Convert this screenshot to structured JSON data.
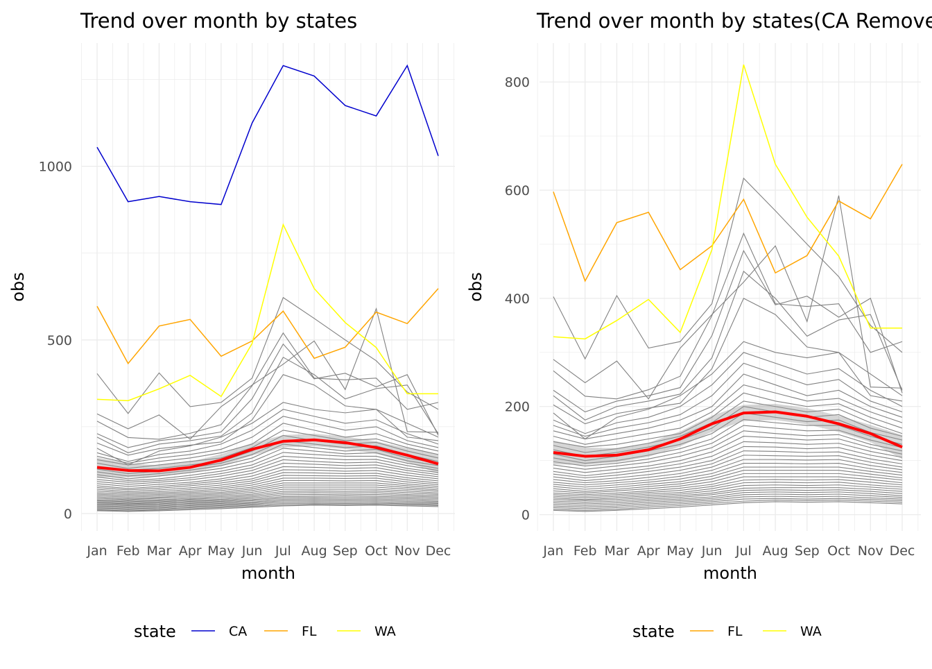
{
  "chart_data": [
    {
      "type": "line",
      "title": "Trend over month by states",
      "xlabel": "month",
      "ylabel": "obs",
      "categories": [
        "Jan",
        "Feb",
        "Mar",
        "Apr",
        "May",
        "Jun",
        "Jul",
        "Aug",
        "Sep",
        "Oct",
        "Nov",
        "Dec"
      ],
      "ylim": [
        -50,
        1355
      ],
      "yticks": [
        0,
        500,
        1000
      ],
      "grid": true,
      "legend": {
        "title": "state",
        "position": "bottom",
        "entries": [
          {
            "label": "CA",
            "color": "#0000cd"
          },
          {
            "label": "FL",
            "color": "#ffa500"
          },
          {
            "label": "WA",
            "color": "#ffff00"
          }
        ]
      },
      "series": [
        {
          "name": "CA",
          "color": "#0000cd",
          "values": [
            1055,
            898,
            913,
            898,
            890,
            1125,
            1290,
            1260,
            1175,
            1145,
            1290,
            1030
          ]
        },
        {
          "name": "FL",
          "color": "#ffa500",
          "values": [
            597,
            432,
            540,
            559,
            453,
            497,
            583,
            447,
            479,
            580,
            547,
            648
          ]
        },
        {
          "name": "WA",
          "color": "#ffff00",
          "values": [
            329,
            325,
            359,
            398,
            337,
            490,
            832,
            648,
            550,
            478,
            345,
            345
          ]
        }
      ],
      "other_states_color": "#808080",
      "other_states": [
        [
          403,
          288,
          405,
          308,
          320,
          390,
          622,
          562,
          500,
          440,
          350,
          300
        ],
        [
          287,
          244,
          284,
          214,
          308,
          370,
          430,
          497,
          357,
          590,
          236,
          234
        ],
        [
          266,
          219,
          214,
          231,
          256,
          368,
          520,
          390,
          385,
          390,
          300,
          320
        ],
        [
          230,
          190,
          210,
          220,
          235,
          331,
          488,
          388,
          404,
          365,
          400,
          225
        ],
        [
          220,
          175,
          200,
          210,
          223,
          290,
          450,
          400,
          330,
          360,
          370,
          230
        ],
        [
          203,
          168,
          187,
          197,
          206,
          270,
          400,
          370,
          310,
          300,
          220,
          210
        ],
        [
          188,
          140,
          180,
          195,
          220,
          260,
          320,
          300,
          290,
          300,
          260,
          220
        ],
        [
          175,
          150,
          170,
          180,
          200,
          240,
          300,
          280,
          260,
          270,
          230,
          200
        ],
        [
          165,
          145,
          160,
          170,
          185,
          220,
          280,
          260,
          240,
          250,
          210,
          190
        ],
        [
          155,
          140,
          150,
          160,
          175,
          200,
          260,
          240,
          220,
          230,
          200,
          180
        ],
        [
          145,
          130,
          140,
          150,
          160,
          190,
          240,
          225,
          210,
          215,
          190,
          170
        ],
        [
          135,
          125,
          130,
          140,
          150,
          180,
          225,
          210,
          200,
          205,
          180,
          160
        ],
        [
          128,
          115,
          122,
          132,
          145,
          170,
          210,
          200,
          190,
          195,
          170,
          150
        ],
        [
          120,
          108,
          115,
          125,
          138,
          160,
          200,
          190,
          180,
          185,
          160,
          145
        ],
        [
          112,
          100,
          108,
          118,
          130,
          150,
          188,
          180,
          172,
          175,
          152,
          138
        ],
        [
          105,
          95,
          100,
          110,
          122,
          140,
          176,
          170,
          165,
          165,
          145,
          130
        ],
        [
          98,
          90,
          95,
          103,
          115,
          132,
          165,
          160,
          155,
          156,
          138,
          124
        ],
        [
          92,
          84,
          90,
          97,
          108,
          124,
          155,
          150,
          146,
          148,
          130,
          118
        ],
        [
          86,
          78,
          84,
          90,
          100,
          116,
          145,
          142,
          138,
          140,
          124,
          112
        ],
        [
          80,
          72,
          78,
          85,
          94,
          108,
          135,
          133,
          130,
          132,
          117,
          106
        ],
        [
          75,
          68,
          73,
          80,
          88,
          100,
          126,
          125,
          122,
          124,
          110,
          100
        ],
        [
          70,
          63,
          68,
          74,
          82,
          94,
          118,
          117,
          115,
          116,
          103,
          94
        ],
        [
          65,
          59,
          63,
          69,
          76,
          88,
          110,
          109,
          108,
          109,
          97,
          88
        ],
        [
          60,
          55,
          59,
          64,
          71,
          82,
          102,
          102,
          101,
          102,
          91,
          83
        ],
        [
          56,
          51,
          55,
          60,
          66,
          76,
          95,
          95,
          94,
          95,
          85,
          78
        ],
        [
          52,
          47,
          51,
          56,
          61,
          71,
          88,
          88,
          88,
          88,
          80,
          73
        ],
        [
          48,
          43,
          47,
          52,
          57,
          66,
          82,
          82,
          82,
          82,
          75,
          68
        ],
        [
          44,
          40,
          44,
          48,
          53,
          61,
          76,
          76,
          76,
          76,
          70,
          64
        ],
        [
          40,
          37,
          40,
          44,
          49,
          56,
          70,
          70,
          70,
          70,
          65,
          59
        ],
        [
          37,
          34,
          37,
          41,
          45,
          52,
          64,
          65,
          64,
          65,
          60,
          55
        ],
        [
          34,
          31,
          34,
          38,
          41,
          48,
          59,
          60,
          59,
          60,
          55,
          51
        ],
        [
          31,
          28,
          31,
          35,
          38,
          44,
          54,
          55,
          54,
          55,
          51,
          47
        ],
        [
          28,
          26,
          28,
          32,
          35,
          40,
          49,
          50,
          50,
          50,
          47,
          43
        ],
        [
          25,
          23,
          25,
          29,
          32,
          37,
          45,
          46,
          45,
          46,
          43,
          39
        ],
        [
          22,
          20,
          22,
          26,
          29,
          33,
          41,
          42,
          41,
          42,
          39,
          35
        ],
        [
          19,
          17,
          19,
          23,
          26,
          30,
          37,
          38,
          37,
          38,
          35,
          32
        ],
        [
          16,
          14,
          16,
          20,
          23,
          27,
          33,
          34,
          33,
          34,
          31,
          29
        ],
        [
          13,
          11,
          13,
          17,
          20,
          24,
          29,
          30,
          29,
          30,
          28,
          26
        ],
        [
          10,
          8,
          10,
          14,
          17,
          21,
          25,
          27,
          26,
          27,
          25,
          23
        ],
        [
          8,
          6,
          8,
          11,
          14,
          18,
          22,
          24,
          23,
          24,
          22,
          20
        ]
      ],
      "smooth": {
        "color": "#ff0000",
        "values": [
          133,
          124,
          123,
          133,
          154,
          185,
          208,
          212,
          204,
          190,
          168,
          143
        ],
        "band_halfwidth": [
          28,
          20,
          16,
          16,
          17,
          18,
          18,
          18,
          18,
          18,
          20,
          28
        ]
      }
    },
    {
      "type": "line",
      "title": "Trend over month by states(CA Removed)",
      "xlabel": "month",
      "ylabel": "obs",
      "categories": [
        "Jan",
        "Feb",
        "Mar",
        "Apr",
        "May",
        "Jun",
        "Jul",
        "Aug",
        "Sep",
        "Oct",
        "Nov",
        "Dec"
      ],
      "ylim": [
        -30,
        872
      ],
      "yticks": [
        0,
        200,
        400,
        600,
        800
      ],
      "grid": true,
      "legend": {
        "title": "state",
        "position": "bottom",
        "entries": [
          {
            "label": "FL",
            "color": "#ffa500"
          },
          {
            "label": "WA",
            "color": "#ffff00"
          }
        ]
      },
      "series": [
        {
          "name": "FL",
          "color": "#ffa500",
          "values": [
            597,
            432,
            540,
            559,
            453,
            497,
            583,
            447,
            479,
            580,
            547,
            648
          ]
        },
        {
          "name": "WA",
          "color": "#ffff00",
          "values": [
            329,
            325,
            359,
            398,
            337,
            490,
            832,
            648,
            550,
            478,
            345,
            345
          ]
        }
      ],
      "other_states_color": "#808080",
      "other_states": [
        [
          403,
          288,
          405,
          308,
          320,
          390,
          622,
          562,
          500,
          440,
          350,
          300
        ],
        [
          287,
          244,
          284,
          214,
          308,
          370,
          430,
          497,
          357,
          590,
          236,
          234
        ],
        [
          266,
          219,
          214,
          231,
          256,
          368,
          520,
          390,
          385,
          390,
          300,
          320
        ],
        [
          230,
          190,
          210,
          220,
          235,
          331,
          488,
          388,
          404,
          365,
          400,
          225
        ],
        [
          220,
          175,
          200,
          210,
          223,
          290,
          450,
          400,
          330,
          360,
          370,
          230
        ],
        [
          203,
          168,
          187,
          197,
          206,
          270,
          400,
          370,
          310,
          300,
          220,
          210
        ],
        [
          188,
          140,
          180,
          195,
          220,
          260,
          320,
          300,
          290,
          300,
          260,
          220
        ],
        [
          175,
          150,
          170,
          180,
          200,
          240,
          300,
          280,
          260,
          270,
          230,
          200
        ],
        [
          165,
          145,
          160,
          170,
          185,
          220,
          280,
          260,
          240,
          250,
          210,
          190
        ],
        [
          155,
          140,
          150,
          160,
          175,
          200,
          260,
          240,
          220,
          230,
          200,
          180
        ],
        [
          145,
          130,
          140,
          150,
          160,
          190,
          240,
          225,
          210,
          215,
          190,
          170
        ],
        [
          135,
          125,
          130,
          140,
          150,
          180,
          225,
          210,
          200,
          205,
          180,
          160
        ],
        [
          128,
          115,
          122,
          132,
          145,
          170,
          210,
          200,
          190,
          195,
          170,
          150
        ],
        [
          120,
          108,
          115,
          125,
          138,
          160,
          200,
          190,
          180,
          185,
          160,
          145
        ],
        [
          112,
          100,
          108,
          118,
          130,
          150,
          188,
          180,
          172,
          175,
          152,
          138
        ],
        [
          105,
          95,
          100,
          110,
          122,
          140,
          176,
          170,
          165,
          165,
          145,
          130
        ],
        [
          98,
          90,
          95,
          103,
          115,
          132,
          165,
          160,
          155,
          156,
          138,
          124
        ],
        [
          92,
          84,
          90,
          97,
          108,
          124,
          155,
          150,
          146,
          148,
          130,
          118
        ],
        [
          86,
          78,
          84,
          90,
          100,
          116,
          145,
          142,
          138,
          140,
          124,
          112
        ],
        [
          80,
          72,
          78,
          85,
          94,
          108,
          135,
          133,
          130,
          132,
          117,
          106
        ],
        [
          75,
          68,
          73,
          80,
          88,
          100,
          126,
          125,
          122,
          124,
          110,
          100
        ],
        [
          70,
          63,
          68,
          74,
          82,
          94,
          118,
          117,
          115,
          116,
          103,
          94
        ],
        [
          65,
          59,
          63,
          69,
          76,
          88,
          110,
          109,
          108,
          109,
          97,
          88
        ],
        [
          60,
          55,
          59,
          64,
          71,
          82,
          102,
          102,
          101,
          102,
          91,
          83
        ],
        [
          56,
          51,
          55,
          60,
          66,
          76,
          95,
          95,
          94,
          95,
          85,
          78
        ],
        [
          52,
          47,
          51,
          56,
          61,
          71,
          88,
          88,
          88,
          88,
          80,
          73
        ],
        [
          48,
          43,
          47,
          52,
          57,
          66,
          82,
          82,
          82,
          82,
          75,
          68
        ],
        [
          44,
          40,
          44,
          48,
          53,
          61,
          76,
          76,
          76,
          76,
          70,
          64
        ],
        [
          40,
          37,
          40,
          44,
          49,
          56,
          70,
          70,
          70,
          70,
          65,
          59
        ],
        [
          37,
          34,
          37,
          41,
          45,
          52,
          64,
          65,
          64,
          65,
          60,
          55
        ],
        [
          34,
          31,
          34,
          38,
          41,
          48,
          59,
          60,
          59,
          60,
          55,
          51
        ],
        [
          31,
          28,
          31,
          35,
          38,
          44,
          54,
          55,
          54,
          55,
          51,
          47
        ],
        [
          28,
          26,
          28,
          32,
          35,
          40,
          49,
          50,
          50,
          50,
          47,
          43
        ],
        [
          25,
          23,
          25,
          29,
          32,
          37,
          45,
          46,
          45,
          46,
          43,
          39
        ],
        [
          22,
          20,
          22,
          26,
          29,
          33,
          41,
          42,
          41,
          42,
          39,
          35
        ],
        [
          19,
          17,
          19,
          23,
          26,
          30,
          37,
          38,
          37,
          38,
          35,
          32
        ],
        [
          16,
          14,
          16,
          20,
          23,
          27,
          33,
          34,
          33,
          34,
          31,
          29
        ],
        [
          13,
          11,
          13,
          17,
          20,
          24,
          29,
          30,
          29,
          30,
          28,
          26
        ],
        [
          10,
          8,
          10,
          14,
          17,
          21,
          25,
          27,
          26,
          27,
          25,
          23
        ],
        [
          8,
          6,
          8,
          11,
          14,
          18,
          22,
          24,
          23,
          24,
          22,
          20
        ]
      ],
      "smooth": {
        "color": "#ff0000",
        "values": [
          115,
          108,
          110,
          120,
          140,
          168,
          188,
          190,
          182,
          168,
          150,
          125
        ],
        "band_halfwidth": [
          22,
          16,
          13,
          13,
          14,
          15,
          15,
          15,
          15,
          15,
          16,
          22
        ]
      }
    }
  ]
}
